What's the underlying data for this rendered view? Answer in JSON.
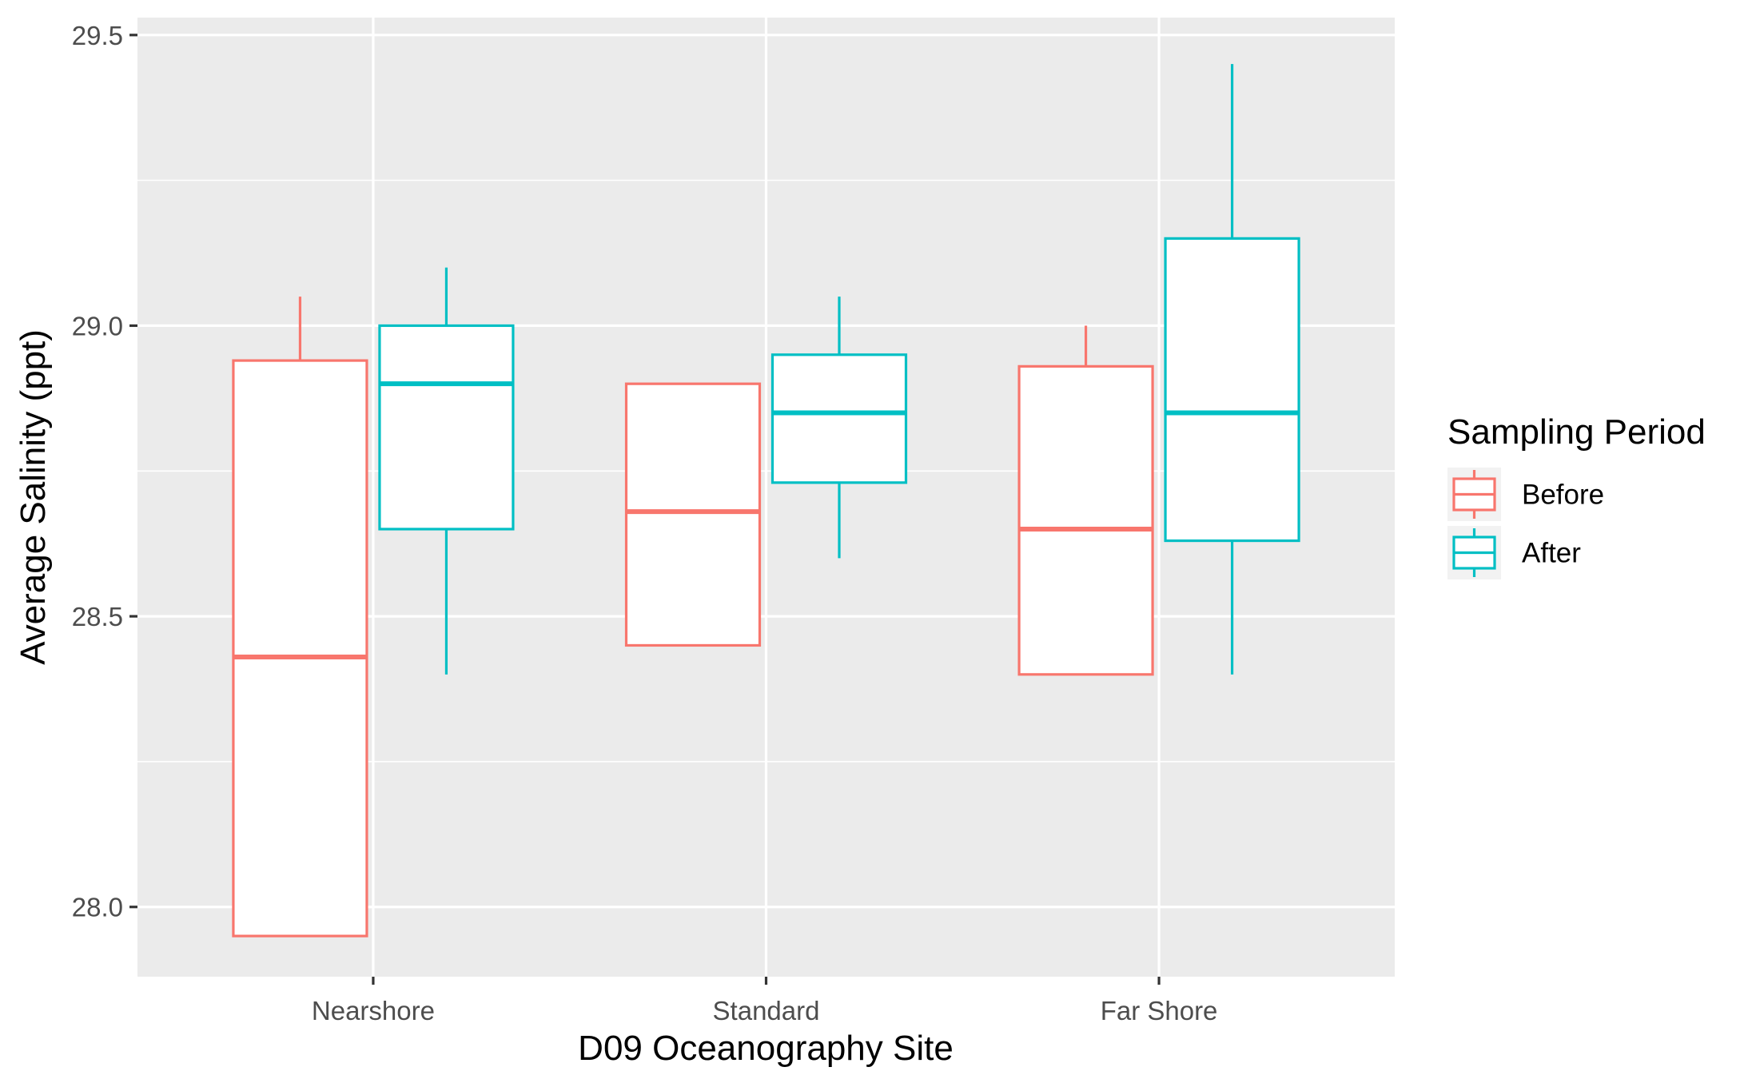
{
  "chart_data": {
    "type": "boxplot",
    "title": "",
    "xlabel": "D09 Oceanography Site",
    "ylabel": "Average Salinity (ppt)",
    "categories": [
      "Nearshore",
      "Standard",
      "Far Shore"
    ],
    "ylim": [
      27.88,
      29.53
    ],
    "yticks": [
      28.0,
      28.5,
      29.0,
      29.5
    ],
    "ytick_labels": [
      "28.0",
      "28.5",
      "29.0",
      "29.5"
    ],
    "grid": true,
    "legend": {
      "title": "Sampling Period",
      "position": "right"
    },
    "series": [
      {
        "name": "Before",
        "color": "#F8766D",
        "boxes": [
          {
            "category": "Nearshore",
            "whisker_low": 27.95,
            "q1": 27.95,
            "median": 28.43,
            "q3": 28.94,
            "whisker_high": 29.05
          },
          {
            "category": "Standard",
            "whisker_low": 28.45,
            "q1": 28.45,
            "median": 28.68,
            "q3": 28.9,
            "whisker_high": 28.9
          },
          {
            "category": "Far Shore",
            "whisker_low": 28.4,
            "q1": 28.4,
            "median": 28.65,
            "q3": 28.93,
            "whisker_high": 29.0
          }
        ]
      },
      {
        "name": "After",
        "color": "#00BFC4",
        "boxes": [
          {
            "category": "Nearshore",
            "whisker_low": 28.4,
            "q1": 28.65,
            "median": 28.9,
            "q3": 29.0,
            "whisker_high": 29.1
          },
          {
            "category": "Standard",
            "whisker_low": 28.6,
            "q1": 28.73,
            "median": 28.85,
            "q3": 28.95,
            "whisker_high": 29.05
          },
          {
            "category": "Far Shore",
            "whisker_low": 28.4,
            "q1": 28.63,
            "median": 28.85,
            "q3": 29.15,
            "whisker_high": 29.45
          }
        ]
      }
    ]
  }
}
